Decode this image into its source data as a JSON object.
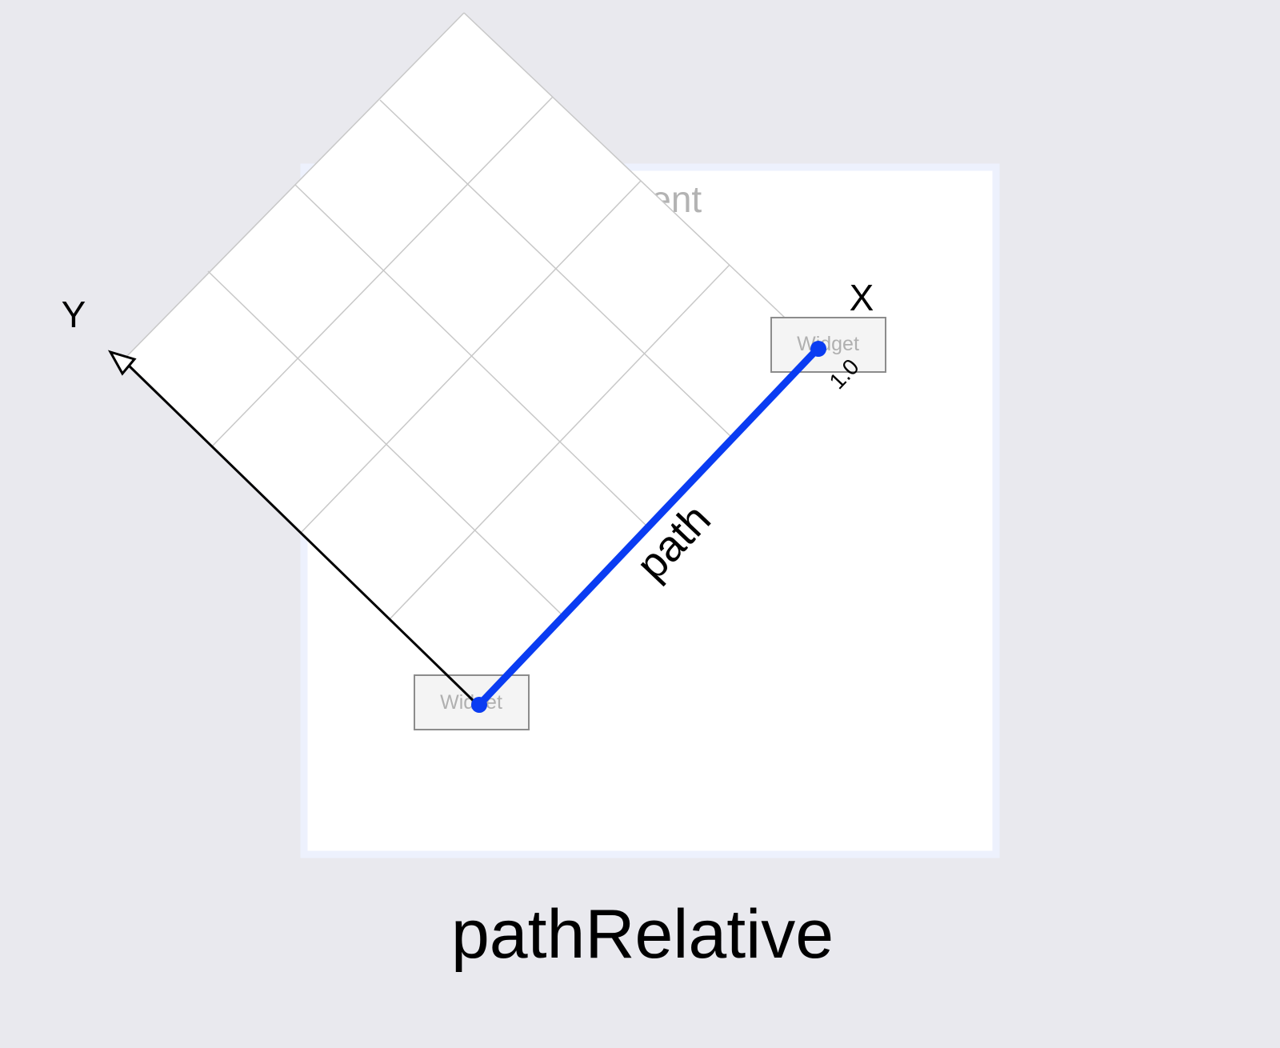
{
  "diagram": {
    "parent_label": "parent",
    "widget_labels": [
      "Widget",
      "Widget"
    ],
    "axis_x_label": "X",
    "axis_y_label": "Y",
    "path_label": "path",
    "tick_label": "1.0",
    "caption": "pathRelative"
  },
  "colors": {
    "background": "#e9e9ee",
    "parent_fill": "#ffffff",
    "parent_border": "#edf1fd",
    "grid_line": "#c8c8c8",
    "widget_fill": "#f4f4f4",
    "widget_border": "#8c8c8c",
    "path": "#0a3cf2",
    "axis": "#000000"
  }
}
